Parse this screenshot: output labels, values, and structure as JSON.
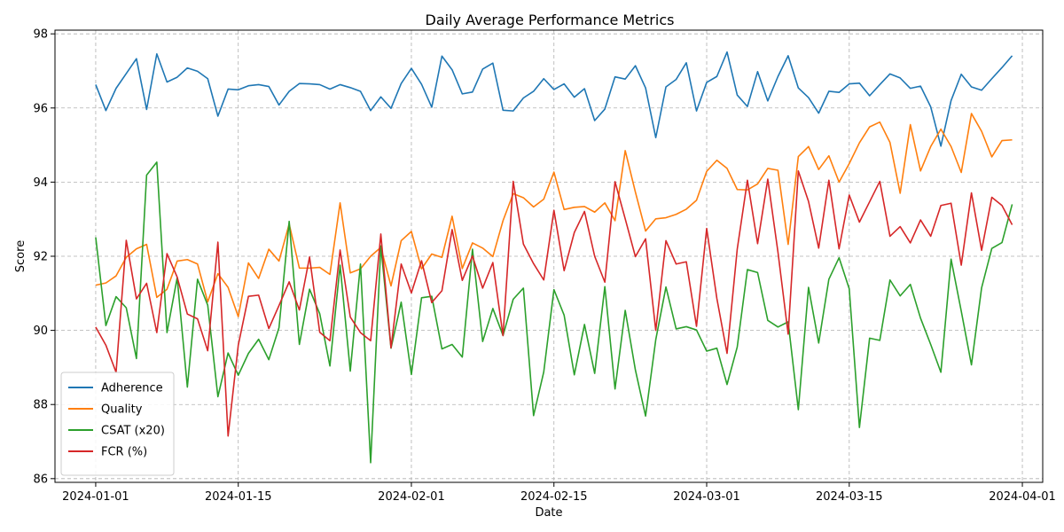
{
  "chart_data": {
    "type": "line",
    "title": "Daily Average Performance Metrics",
    "xlabel": "Date",
    "ylabel": "Score",
    "x_start": "2024-01-01",
    "x_end": "2024-03-31",
    "x_ticks": [
      "2024-01-01",
      "2024-01-15",
      "2024-02-01",
      "2024-02-15",
      "2024-03-01",
      "2024-03-15",
      "2024-04-01"
    ],
    "xlim": [
      "2023-12-28",
      "2024-04-03"
    ],
    "ylim": [
      85.9,
      98.1
    ],
    "y_ticks": [
      86,
      88,
      90,
      92,
      94,
      96,
      98
    ],
    "grid": true,
    "legend_position": "lower-left",
    "series": [
      {
        "name": "Adherence",
        "color": "#1f77b4",
        "values": [
          96.63,
          95.93,
          96.53,
          96.93,
          97.33,
          95.96,
          97.46,
          96.7,
          96.83,
          97.08,
          96.99,
          96.79,
          95.78,
          96.51,
          96.49,
          96.6,
          96.63,
          96.58,
          96.08,
          96.45,
          96.66,
          96.65,
          96.63,
          96.51,
          96.63,
          96.55,
          96.45,
          95.93,
          96.3,
          95.99,
          96.66,
          97.07,
          96.64,
          96.02,
          97.4,
          97.03,
          96.38,
          96.43,
          97.05,
          97.21,
          95.94,
          95.92,
          96.27,
          96.45,
          96.79,
          96.5,
          96.65,
          96.29,
          96.52,
          95.66,
          95.97,
          96.84,
          96.78,
          97.14,
          96.54,
          95.2,
          96.57,
          96.77,
          97.22,
          95.92,
          96.69,
          96.85,
          97.51,
          96.35,
          96.04,
          96.98,
          96.19,
          96.85,
          97.41,
          96.54,
          96.28,
          95.86,
          96.45,
          96.42,
          96.65,
          96.67,
          96.33,
          96.63,
          96.92,
          96.81,
          96.53,
          96.59,
          96.03,
          94.97,
          96.2,
          96.91,
          96.57,
          96.48,
          96.79,
          97.09,
          97.41
        ]
      },
      {
        "name": "Quality",
        "color": "#ff7f0e",
        "values": [
          91.22,
          91.28,
          91.47,
          91.97,
          92.2,
          92.32,
          90.89,
          91.11,
          91.87,
          91.91,
          91.79,
          90.77,
          91.53,
          91.16,
          90.37,
          91.82,
          91.4,
          92.19,
          91.87,
          92.87,
          91.68,
          91.68,
          91.7,
          91.51,
          93.44,
          91.55,
          91.66,
          92.0,
          92.24,
          91.2,
          92.42,
          92.67,
          91.66,
          92.06,
          91.97,
          93.08,
          91.67,
          92.36,
          92.22,
          91.99,
          92.96,
          93.69,
          93.58,
          93.33,
          93.54,
          94.27,
          93.26,
          93.32,
          93.34,
          93.19,
          93.44,
          92.96,
          94.85,
          93.73,
          92.68,
          93.01,
          93.04,
          93.13,
          93.27,
          93.51,
          94.29,
          94.59,
          94.37,
          93.8,
          93.79,
          93.95,
          94.37,
          94.32,
          92.32,
          94.69,
          94.96,
          94.34,
          94.71,
          94.0,
          94.5,
          95.06,
          95.49,
          95.62,
          95.07,
          93.7,
          95.55,
          94.3,
          94.96,
          95.43,
          94.96,
          94.26,
          95.85,
          95.37,
          94.68,
          95.12,
          95.14
        ]
      },
      {
        "name": "CSAT (x20)",
        "color": "#2ca02c",
        "values": [
          92.51,
          90.13,
          90.91,
          90.61,
          89.24,
          94.19,
          94.54,
          89.94,
          91.42,
          88.47,
          91.38,
          90.68,
          88.21,
          89.39,
          88.79,
          89.38,
          89.76,
          89.21,
          90.07,
          92.94,
          89.62,
          91.11,
          90.45,
          89.04,
          91.76,
          88.9,
          91.79,
          86.43,
          92.28,
          89.52,
          90.76,
          88.81,
          90.88,
          90.92,
          89.5,
          89.62,
          89.28,
          92.19,
          89.7,
          90.59,
          89.86,
          90.84,
          91.14,
          87.7,
          88.88,
          91.1,
          90.41,
          88.8,
          90.16,
          88.84,
          91.18,
          88.42,
          90.54,
          88.93,
          87.69,
          89.75,
          91.17,
          90.04,
          90.1,
          90.01,
          89.44,
          89.52,
          88.54,
          89.55,
          91.64,
          91.56,
          90.27,
          90.09,
          90.23,
          87.86,
          91.16,
          89.66,
          91.38,
          91.96,
          91.12,
          87.38,
          89.79,
          89.73,
          91.36,
          90.93,
          91.24,
          90.33,
          89.62,
          88.87,
          91.92,
          90.52,
          89.07,
          91.15,
          92.21,
          92.37,
          93.4
        ]
      },
      {
        "name": "FCR (%)",
        "color": "#d62728",
        "values": [
          90.09,
          89.6,
          88.87,
          92.43,
          90.85,
          91.27,
          89.94,
          92.07,
          91.44,
          90.44,
          90.31,
          89.45,
          92.38,
          87.15,
          89.6,
          90.92,
          90.95,
          90.05,
          90.67,
          91.31,
          90.55,
          91.98,
          89.95,
          89.72,
          92.17,
          90.36,
          89.94,
          89.72,
          92.6,
          89.53,
          91.79,
          91.01,
          91.88,
          90.75,
          91.07,
          92.72,
          91.35,
          92.01,
          91.14,
          91.83,
          89.86,
          94.02,
          92.33,
          91.8,
          91.36,
          93.24,
          91.61,
          92.64,
          93.21,
          92.0,
          91.3,
          94.01,
          93.01,
          91.99,
          92.47,
          90.0,
          92.42,
          91.79,
          91.85,
          90.11,
          92.75,
          90.86,
          89.38,
          92.19,
          94.05,
          92.34,
          94.08,
          92.11,
          89.9,
          94.3,
          93.48,
          92.22,
          94.05,
          92.2,
          93.65,
          92.92,
          93.47,
          94.02,
          92.54,
          92.8,
          92.36,
          92.98,
          92.54,
          93.37,
          93.43,
          91.76,
          93.71,
          92.16,
          93.59,
          93.37,
          92.85
        ]
      }
    ]
  }
}
